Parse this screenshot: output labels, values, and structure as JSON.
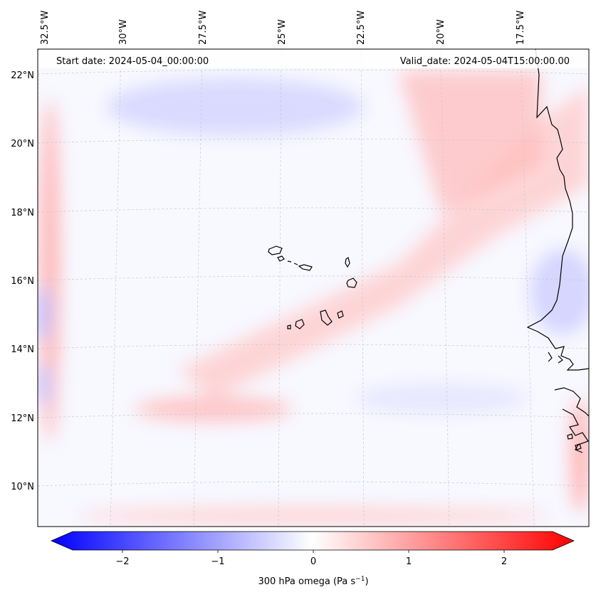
{
  "header": {
    "start_date": "Start date: 2024-05-04_00:00:00",
    "valid_date": "Valid_date: 2024-05-04T15:00:00.00"
  },
  "axes": {
    "lon_labels": [
      "32.5°W",
      "30°W",
      "27.5°W",
      "25°W",
      "22.5°W",
      "20°W",
      "17.5°W"
    ],
    "lat_labels": [
      "22°N",
      "20°N",
      "18°N",
      "16°N",
      "14°N",
      "12°N",
      "10°N"
    ]
  },
  "colorbar": {
    "label_main": "300 hPa omega (Pa s",
    "label_sup": "−1",
    "label_close": ")",
    "ticks": [
      "−2",
      "−1",
      "0",
      "1",
      "2"
    ],
    "min": -2.6,
    "max": 2.6,
    "colors": {
      "low": "#0000ff",
      "mid": "#ffffff",
      "high": "#ff0000"
    }
  },
  "map": {
    "field": "300 hPa omega",
    "coastline_color": "#000000",
    "gridline_color": "#b0b0b0"
  }
}
